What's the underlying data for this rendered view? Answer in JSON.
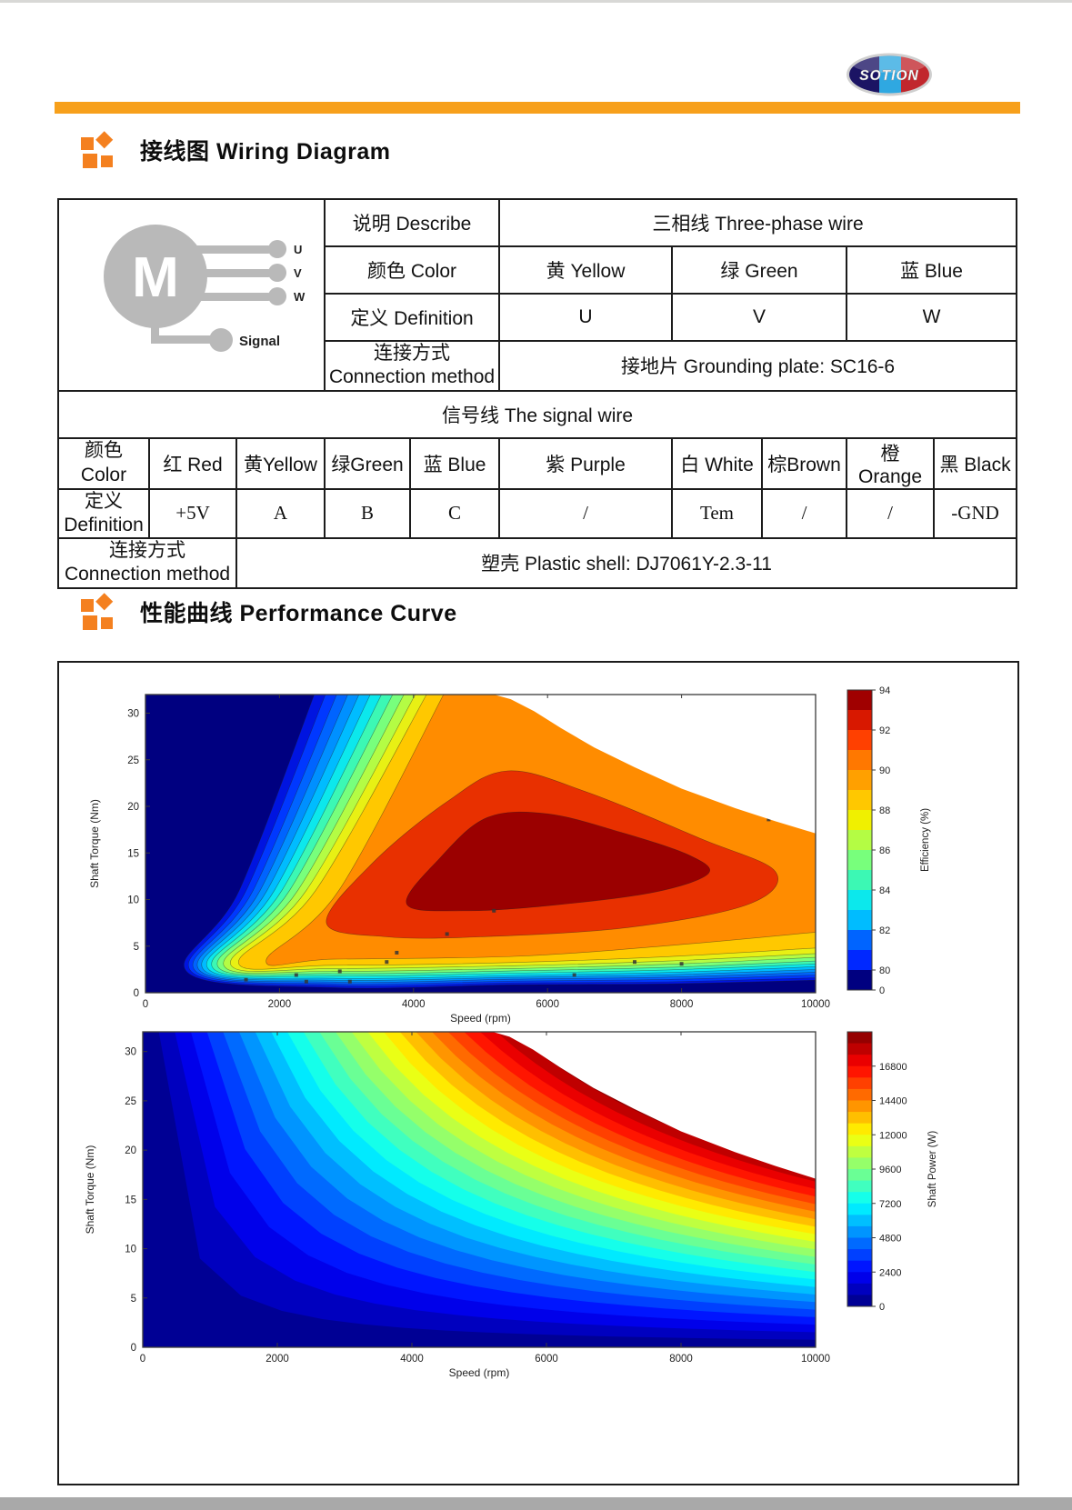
{
  "logo": {
    "text": "SOTION",
    "left_color": "#1b1464",
    "mid_color": "#2fa8e1",
    "right_color": "#c1272d"
  },
  "accent_orange": "#F7A01B",
  "sections": {
    "wiring_title": "接线图 Wiring Diagram",
    "performance_title": "性能曲线 Performance Curve"
  },
  "wiring": {
    "motor": {
      "letter": "M",
      "terminals": [
        "U",
        "V",
        "W"
      ],
      "signal": "Signal"
    },
    "describe_label": "说明 Describe",
    "describe_value": "三相线 Three-phase wire",
    "color_label": "颜色 Color",
    "phase_colors": [
      "黄 Yellow",
      "绿 Green",
      "蓝 Blue"
    ],
    "definition_label": "定义 Definition",
    "phase_definitions": [
      "U",
      "V",
      "W"
    ],
    "connection_label_zh": "连接方式",
    "connection_label_en": "Connection method",
    "connection_value": "接地片 Grounding plate: SC16-6",
    "signal_header": "信号线 The signal wire",
    "signal_color_label_zh": "颜色",
    "signal_color_label_en": "Color",
    "signal_colors": [
      "红 Red",
      "黄Yellow",
      "绿Green",
      "蓝 Blue",
      "紫 Purple",
      "白 White",
      "棕Brown",
      "橙Orange",
      "黑 Black"
    ],
    "signal_def_label_zh": "定义",
    "signal_def_label_en": "Definition",
    "signal_definitions": [
      "+5V",
      "A",
      "B",
      "C",
      "/",
      "Tem",
      "/",
      "/",
      "-GND"
    ],
    "signal_connection_label_zh": "连接方式",
    "signal_connection_label_en": "Connection method",
    "signal_connection_value": "塑壳 Plastic shell: DJ7061Y-2.3-11"
  },
  "chart_data": [
    {
      "type": "heatmap",
      "title": "Motor efficiency map",
      "xlabel": "Speed  (rpm)",
      "ylabel": "Shaft Torque  (Nm)",
      "xlim": [
        0,
        10000
      ],
      "ylim": [
        0,
        32
      ],
      "xticks": [
        0,
        2000,
        4000,
        6000,
        8000,
        10000
      ],
      "yticks": [
        0,
        5,
        10,
        15,
        20,
        25,
        30
      ],
      "grid": false,
      "legend_position": "right-colorbar",
      "background_color": "#000080",
      "colorbar": {
        "label": "Efficiency (%)",
        "ticks": [
          94,
          92,
          90,
          88,
          86,
          84,
          82,
          80,
          0
        ],
        "top_value": 94,
        "segment_colors_top_to_bottom": [
          "#A00000",
          "#D81800",
          "#FF4000",
          "#FF7800",
          "#FFA000",
          "#FFC800",
          "#F0F000",
          "#B4FC44",
          "#78FF7C",
          "#3CF8B4",
          "#0CE8EC",
          "#00BCFF",
          "#0064FF",
          "#0028FF",
          "#000080"
        ]
      },
      "max_torque_envelope_rpm_nm": [
        [
          0,
          32
        ],
        [
          5200,
          32
        ],
        [
          5450,
          31.5
        ],
        [
          5800,
          30.2
        ],
        [
          6200,
          28.4
        ],
        [
          6700,
          26.3
        ],
        [
          7300,
          24.2
        ],
        [
          8000,
          21.9
        ],
        [
          8800,
          19.8
        ],
        [
          9400,
          18.4
        ],
        [
          10000,
          17.1
        ]
      ],
      "efficiency_contours": [
        {
          "level": 80,
          "color": "#0014E0",
          "top_rpm": 2570,
          "corner_rpm": 620,
          "mid_bottom_nm": 0.55,
          "right_nm": 1.35
        },
        {
          "level": 81,
          "color": "#0038FF",
          "top_rpm": 2740,
          "corner_rpm": 680,
          "mid_bottom_nm": 0.75,
          "right_nm": 1.6
        },
        {
          "level": 82,
          "color": "#0064FF",
          "top_rpm": 2910,
          "corner_rpm": 740,
          "mid_bottom_nm": 0.95,
          "right_nm": 1.9
        },
        {
          "level": 83,
          "color": "#0090FF",
          "top_rpm": 3080,
          "corner_rpm": 800,
          "mid_bottom_nm": 1.15,
          "right_nm": 2.2
        },
        {
          "level": 84,
          "color": "#00BCFF",
          "top_rpm": 3250,
          "corner_rpm": 860,
          "mid_bottom_nm": 1.35,
          "right_nm": 2.5
        },
        {
          "level": 85,
          "color": "#0CE8EC",
          "top_rpm": 3420,
          "corner_rpm": 930,
          "mid_bottom_nm": 1.55,
          "right_nm": 2.8
        },
        {
          "level": 86,
          "color": "#3CF8B4",
          "top_rpm": 3590,
          "corner_rpm": 1000,
          "mid_bottom_nm": 1.8,
          "right_nm": 3.1
        },
        {
          "level": 87,
          "color": "#78FF7C",
          "top_rpm": 3760,
          "corner_rpm": 1080,
          "mid_bottom_nm": 2.05,
          "right_nm": 3.4
        },
        {
          "level": 88,
          "color": "#B4FC44",
          "top_rpm": 3930,
          "corner_rpm": 1170,
          "mid_bottom_nm": 2.3,
          "right_nm": 3.8
        },
        {
          "level": 89,
          "color": "#E8F014",
          "top_rpm": 4100,
          "corner_rpm": 1270,
          "mid_bottom_nm": 2.6,
          "right_nm": 4.2
        },
        {
          "level": 90,
          "color": "#FFC800",
          "top_rpm": 4270,
          "corner_rpm": 1390,
          "mid_bottom_nm": 2.95,
          "right_nm": 4.8
        },
        {
          "level": 91,
          "color": "#FF8C00",
          "top_rpm": 4520,
          "corner_rpm": 1800,
          "mid_bottom_nm": 3.6,
          "right_nm": 6.5
        }
      ],
      "inner_islands": [
        {
          "level": 92,
          "color": "#E83000",
          "points_rpm_nm": [
            [
              2700,
              7.5
            ],
            [
              3400,
              14
            ],
            [
              4500,
              20.5
            ],
            [
              5400,
              23.8
            ],
            [
              6600,
              21.5
            ],
            [
              8300,
              16.5
            ],
            [
              9400,
              13
            ],
            [
              9000,
              9.5
            ],
            [
              7200,
              7
            ],
            [
              5000,
              6
            ],
            [
              3600,
              6
            ]
          ]
        },
        {
          "level": 93,
          "color": "#9B0000",
          "points_rpm_nm": [
            [
              3900,
              9.5
            ],
            [
              4400,
              14.5
            ],
            [
              5100,
              18.8
            ],
            [
              6000,
              19.2
            ],
            [
              7100,
              17.2
            ],
            [
              8100,
              14.8
            ],
            [
              8400,
              12.8
            ],
            [
              7600,
              10.8
            ],
            [
              6100,
              9.4
            ],
            [
              4800,
              8.8
            ]
          ]
        }
      ],
      "sample_points_rpm_nm": [
        [
          1500,
          1.4
        ],
        [
          2250,
          1.9
        ],
        [
          2400,
          1.2
        ],
        [
          2900,
          2.3
        ],
        [
          3050,
          1.2
        ],
        [
          3600,
          3.3
        ],
        [
          3750,
          4.3
        ],
        [
          4500,
          6.3
        ],
        [
          5200,
          8.8
        ],
        [
          6400,
          1.9
        ],
        [
          7300,
          3.3
        ],
        [
          8000,
          3.1
        ],
        [
          9300,
          18.6
        ]
      ]
    },
    {
      "type": "heatmap",
      "title": "Motor shaft power map",
      "xlabel": "Speed  (rpm)",
      "ylabel": "Shaft Torque  (Nm)",
      "xlim": [
        0,
        10000
      ],
      "ylim": [
        0,
        32
      ],
      "xticks": [
        0,
        2000,
        4000,
        6000,
        8000,
        10000
      ],
      "yticks": [
        0,
        5,
        10,
        15,
        20,
        25,
        30
      ],
      "grid": false,
      "legend_position": "right-colorbar",
      "colorbar": {
        "label": "Shaft Power (W)",
        "ticks": [
          16800,
          14400,
          12000,
          9600,
          7200,
          4800,
          2400,
          0
        ],
        "max": 19200
      },
      "power_levels_w": {
        "min": 0,
        "max": 19200,
        "step": 800
      },
      "iso_power_relation": "T(Nm) = 9.5493 * P(W) / rpm",
      "max_torque_envelope_rpm_nm": [
        [
          0,
          32
        ],
        [
          5200,
          32
        ],
        [
          5450,
          31.5
        ],
        [
          5800,
          30.2
        ],
        [
          6200,
          28.4
        ],
        [
          6700,
          26.3
        ],
        [
          7300,
          24.2
        ],
        [
          8000,
          21.9
        ],
        [
          8800,
          19.8
        ],
        [
          9400,
          18.4
        ],
        [
          10000,
          17.1
        ]
      ]
    }
  ]
}
